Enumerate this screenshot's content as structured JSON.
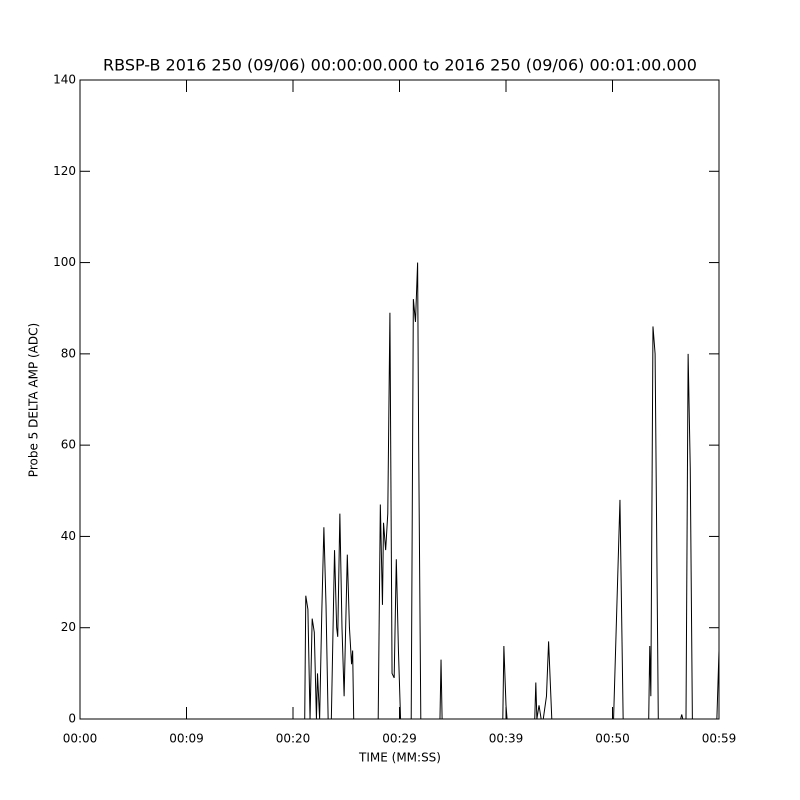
{
  "chart_data": {
    "type": "line",
    "title": "RBSP-B 2016 250 (09/06) 00:00:00.000 to 2016 250 (09/06) 00:01:00.000",
    "xlabel": "TIME (MM:SS)",
    "ylabel": "Probe 5 DELTA AMP (ADC)",
    "xlim": [
      0,
      60
    ],
    "ylim": [
      0,
      140
    ],
    "xticks": [
      {
        "value": 0,
        "label": "00:00"
      },
      {
        "value": 10,
        "label": "00:09"
      },
      {
        "value": 20,
        "label": "00:20"
      },
      {
        "value": 30,
        "label": "00:29"
      },
      {
        "value": 40,
        "label": "00:39"
      },
      {
        "value": 50,
        "label": "00:50"
      },
      {
        "value": 60,
        "label": "00:59"
      }
    ],
    "yticks": [
      0,
      20,
      40,
      60,
      80,
      100,
      120,
      140
    ],
    "series": [
      {
        "color": "#000000",
        "x": [
          0,
          21.0,
          21.1,
          21.2,
          21.4,
          21.6,
          21.8,
          22.0,
          22.2,
          22.3,
          22.5,
          22.7,
          22.9,
          23.1,
          23.3,
          23.6,
          23.9,
          24.1,
          24.2,
          24.4,
          24.6,
          24.8,
          25.1,
          25.3,
          25.5,
          25.6,
          25.7,
          28.0,
          28.2,
          28.4,
          28.5,
          28.7,
          28.9,
          29.1,
          29.3,
          29.5,
          29.7,
          29.9,
          30.1,
          31.1,
          31.3,
          31.5,
          31.7,
          31.8,
          32.0,
          33.8,
          33.9,
          34.0,
          39.7,
          39.8,
          40.0,
          40.1,
          42.7,
          42.8,
          42.9,
          43.1,
          43.3,
          43.5,
          43.8,
          44.0,
          44.3,
          50.1,
          50.7,
          51.0,
          53.4,
          53.5,
          53.6,
          53.8,
          54.0,
          54.3,
          56.4,
          56.5,
          56.6,
          56.9,
          57.1,
          57.3,
          57.5,
          59.8,
          60
        ],
        "values": [
          0,
          0,
          0,
          27,
          24,
          0,
          22,
          19,
          0,
          10,
          0,
          23,
          42,
          25,
          0,
          0,
          37,
          20,
          18,
          45,
          20,
          5,
          36,
          20,
          12,
          15,
          0,
          0,
          47,
          25,
          43,
          37,
          45,
          89,
          10,
          9,
          35,
          15,
          0,
          0,
          92,
          87,
          100,
          60,
          0,
          0,
          13,
          0,
          0,
          16,
          3,
          0,
          0,
          8,
          0,
          3,
          0,
          0,
          5,
          17,
          0,
          0,
          48,
          0,
          0,
          16,
          5,
          86,
          80,
          0,
          0,
          1,
          0,
          0,
          80,
          55,
          0,
          0,
          15
        ]
      }
    ]
  }
}
